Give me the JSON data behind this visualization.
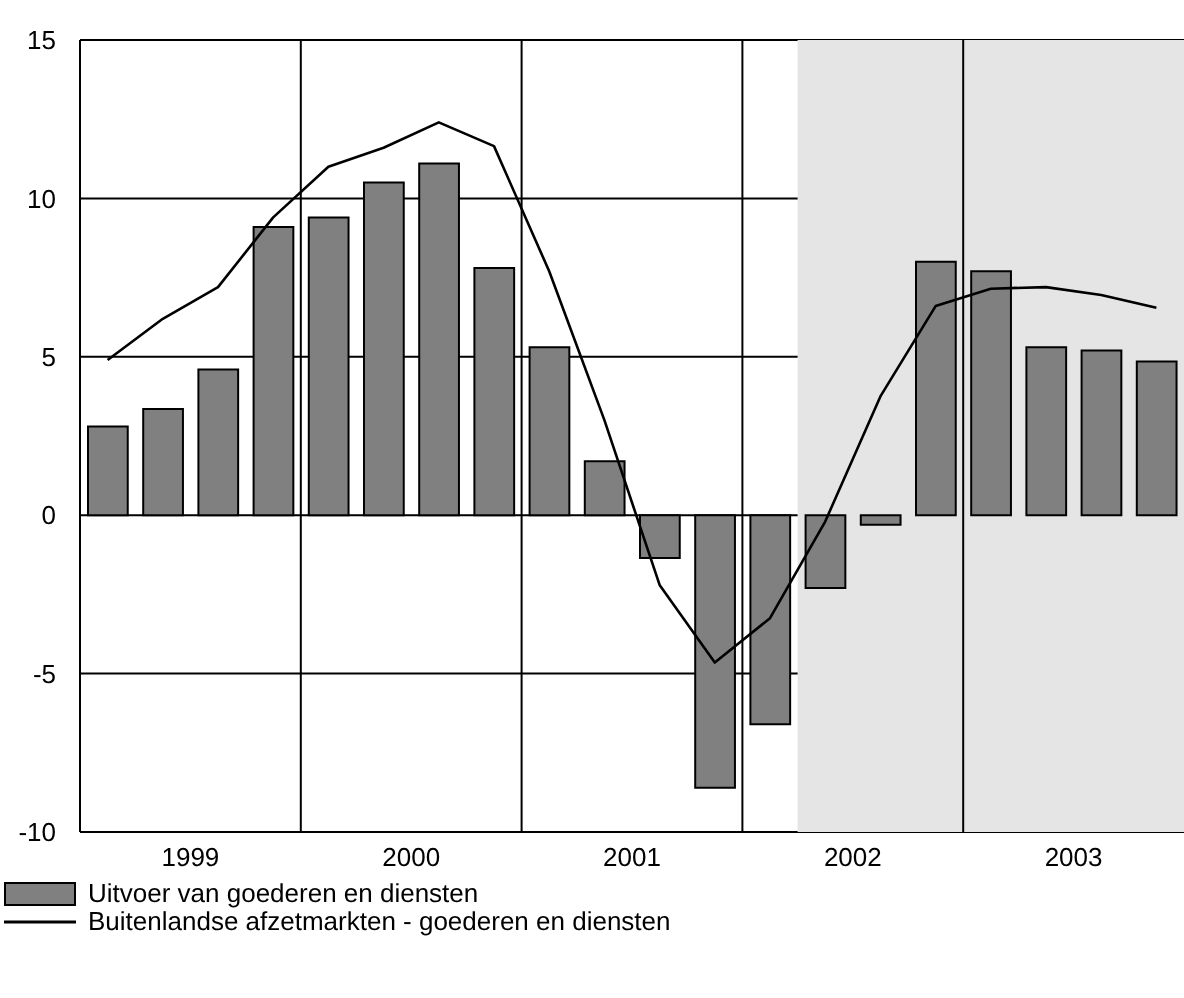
{
  "chart_data": {
    "type": "bar",
    "x": [
      1999.125,
      1999.375,
      1999.625,
      1999.875,
      2000.125,
      2000.375,
      2000.625,
      2000.875,
      2001.125,
      2001.375,
      2001.625,
      2001.875,
      2002.125,
      2002.375,
      2002.625,
      2002.875,
      2003.125,
      2003.375,
      2003.625,
      2003.875
    ],
    "series": [
      {
        "name": "Uitvoer van goederen en diensten",
        "color": "#808080",
        "values": [
          2.8,
          3.35,
          4.6,
          9.1,
          9.4,
          10.5,
          11.1,
          7.8,
          5.3,
          1.7,
          -1.35,
          -8.6,
          -6.6,
          -2.3,
          -0.3,
          8.0,
          7.7,
          5.3,
          5.2,
          4.85
        ]
      },
      {
        "name": "Buitenlandse afzetmarkten - goederen en diensten",
        "type": "line",
        "color": "#000000",
        "values": [
          4.9,
          6.2,
          7.2,
          9.4,
          11.0,
          11.6,
          12.4,
          11.65,
          7.7,
          3.0,
          -2.2,
          -4.65,
          -3.25,
          -0.2,
          3.75,
          6.6,
          7.15,
          7.2,
          6.95,
          6.55
        ]
      }
    ],
    "xlim": [
      1999,
      2004
    ],
    "xticks": [
      {
        "value": 1999.5,
        "label": "1999"
      },
      {
        "value": 2000.5,
        "label": "2000"
      },
      {
        "value": 2001.5,
        "label": "2001"
      },
      {
        "value": 2002.5,
        "label": "2002"
      },
      {
        "value": 2003.5,
        "label": "2003"
      }
    ],
    "ylim": [
      -10,
      15
    ],
    "yticks": [
      -10,
      -5,
      0,
      5,
      10,
      15
    ],
    "grid": "y",
    "ref_lines": [
      {
        "axis": "x",
        "value": 2000,
        "color": "#000000"
      },
      {
        "axis": "x",
        "value": 2001,
        "color": "#000000"
      },
      {
        "axis": "x",
        "value": 2002,
        "color": "#000000"
      },
      {
        "axis": "x",
        "value": 2003,
        "color": "#000000"
      }
    ],
    "bands": [
      {
        "axis": "x",
        "from": 2002.25,
        "to": 2004,
        "color": "#e5e5e5"
      }
    ],
    "legend": "bottom left",
    "marker": "none",
    "line_style": "solid"
  }
}
